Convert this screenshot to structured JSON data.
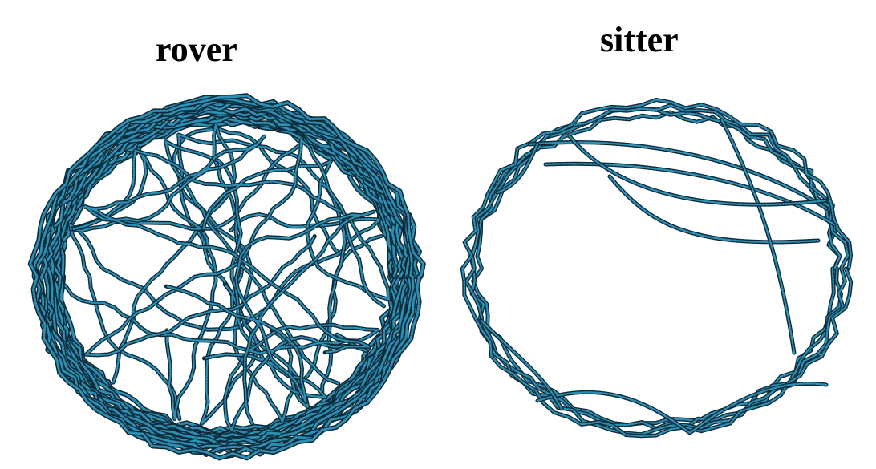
{
  "panels": {
    "rover": {
      "title": "rover",
      "track_color": "#2d8fb4",
      "outline_color": "#0d2a38"
    },
    "sitter": {
      "title": "sitter",
      "track_color": "#2d8fb4",
      "outline_color": "#0d2a38"
    }
  }
}
